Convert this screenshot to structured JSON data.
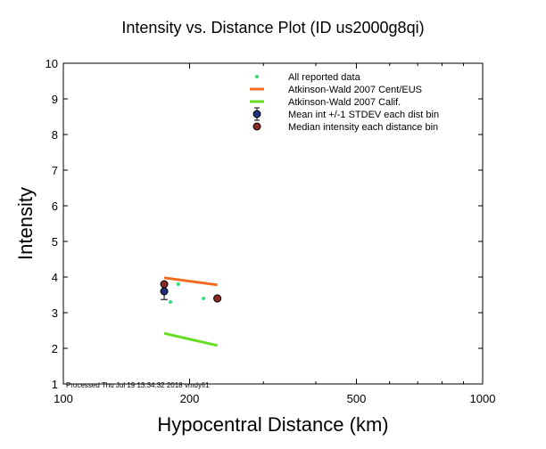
{
  "chart_data": {
    "type": "scatter",
    "title": "Intensity vs. Distance Plot (ID us2000g8qi)",
    "xlabel": "Hypocentral Distance (km)",
    "ylabel": "Intensity",
    "xscale": "log",
    "xlim": [
      100,
      1000
    ],
    "ylim": [
      1,
      10
    ],
    "x_ticks": [
      100,
      200,
      500,
      1000
    ],
    "x_tick_labels": [
      "100",
      "200",
      "500",
      "1000"
    ],
    "y_ticks": [
      1,
      2,
      3,
      4,
      5,
      6,
      7,
      8,
      9,
      10
    ],
    "y_tick_labels": [
      "1",
      "2",
      "3",
      "4",
      "5",
      "6",
      "7",
      "8",
      "9",
      "10"
    ],
    "footer": "Processed Thu Jul 19 13:34:32 2018 vmdyfi1",
    "legend_position": "top-right",
    "series": [
      {
        "name": "All reported data",
        "kind": "points",
        "color": "#33dd77",
        "x": [
          174,
          180,
          188,
          216
        ],
        "y": [
          3.8,
          3.3,
          3.8,
          3.4
        ]
      },
      {
        "name": "Atkinson-Wald 2007 Cent/EUS",
        "kind": "line",
        "color": "#f26b21",
        "x": [
          174,
          233
        ],
        "y": [
          3.98,
          3.78
        ]
      },
      {
        "name": "Atkinson-Wald 2007 Calif.",
        "kind": "line",
        "color": "#66dd22",
        "x": [
          174,
          233
        ],
        "y": [
          2.42,
          2.08
        ]
      },
      {
        "name": "Mean int +/-1 STDEV each dist bin",
        "kind": "errorbar",
        "color": "#22307a",
        "x": [
          174,
          233
        ],
        "y": [
          3.6,
          3.4
        ],
        "err": [
          0.23,
          0
        ]
      },
      {
        "name": "Median intensity each distance bin",
        "kind": "marker",
        "color": "#8a2a22",
        "x": [
          174,
          233
        ],
        "y": [
          3.8,
          3.4
        ]
      }
    ]
  }
}
